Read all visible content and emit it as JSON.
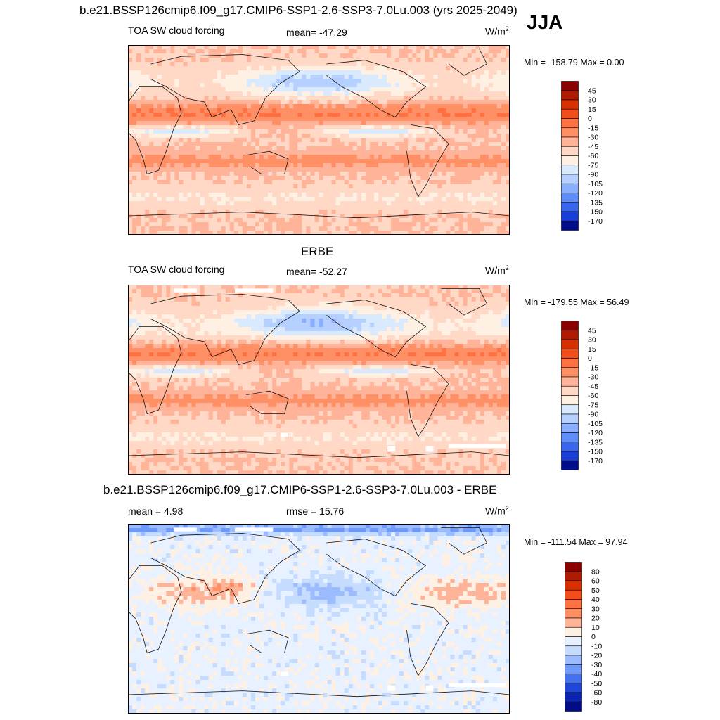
{
  "figure": {
    "title": "b.e21.BSSP126cmip6.f09_g17.CMIP6-SSP1-2.6-SSP3-7.0Lu.003 (yrs 2025-2049)",
    "season": "JJA"
  },
  "chart_data": [
    {
      "type": "heatmap",
      "panel": "model",
      "title": "",
      "variable_label": "TOA SW cloud forcing",
      "stat_label": "mean= -47.29",
      "units": "W/m",
      "units_exponent": "2",
      "minmax": "Min = -158.79 Max =   0.00",
      "min": -158.79,
      "max": 0.0,
      "mean": -47.29,
      "colorbar": {
        "levels": [
          "45",
          "30",
          "15",
          "0",
          "-15",
          "-30",
          "-45",
          "-60",
          "-75",
          "-90",
          "-105",
          "-120",
          "-135",
          "-150",
          "-170"
        ],
        "colors": [
          "#8b0000",
          "#b01a00",
          "#d83000",
          "#f24d1a",
          "#ff7043",
          "#ff9066",
          "#ffb49a",
          "#ffd8c6",
          "#fff0e4",
          "#d9eaff",
          "#b5d0ff",
          "#8aafff",
          "#5f8dfb",
          "#3a66ee",
          "#1a3fd8",
          "#000c8a"
        ]
      }
    },
    {
      "type": "heatmap",
      "panel": "observation",
      "title": "ERBE",
      "variable_label": "TOA SW cloud forcing",
      "stat_label": "mean= -52.27",
      "units": "W/m",
      "units_exponent": "2",
      "minmax": "Min = -179.55 Max =  56.49",
      "min": -179.55,
      "max": 56.49,
      "mean": -52.27,
      "colorbar": {
        "levels": [
          "45",
          "30",
          "15",
          "0",
          "-15",
          "-30",
          "-45",
          "-60",
          "-75",
          "-90",
          "-105",
          "-120",
          "-135",
          "-150",
          "-170"
        ],
        "colors": [
          "#8b0000",
          "#b01a00",
          "#d83000",
          "#f24d1a",
          "#ff7043",
          "#ff9066",
          "#ffb49a",
          "#ffd8c6",
          "#fff0e4",
          "#d9eaff",
          "#b5d0ff",
          "#8aafff",
          "#5f8dfb",
          "#3a66ee",
          "#1a3fd8",
          "#000c8a"
        ]
      }
    },
    {
      "type": "heatmap",
      "panel": "difference",
      "title": "b.e21.BSSP126cmip6.f09_g17.CMIP6-SSP1-2.6-SSP3-7.0Lu.003 - ERBE",
      "variable_label": "mean =   4.98",
      "stat_label": "rmse =  15.76",
      "units": "W/m",
      "units_exponent": "2",
      "minmax": "Min = -111.54 Max =  97.94",
      "min": -111.54,
      "max": 97.94,
      "mean": 4.98,
      "rmse": 15.76,
      "colorbar": {
        "levels": [
          "80",
          "60",
          "50",
          "40",
          "30",
          "20",
          "10",
          "0",
          "-10",
          "-20",
          "-30",
          "-40",
          "-50",
          "-60",
          "-80"
        ],
        "colors": [
          "#8b0000",
          "#b01a00",
          "#d83000",
          "#f24d1a",
          "#ff7043",
          "#ff9066",
          "#ffb49a",
          "#fff0e4",
          "#e8f1ff",
          "#c6dcff",
          "#9cbcff",
          "#6f98fb",
          "#4671ee",
          "#1f46d8",
          "#0a24b0",
          "#000c8a"
        ]
      }
    }
  ]
}
